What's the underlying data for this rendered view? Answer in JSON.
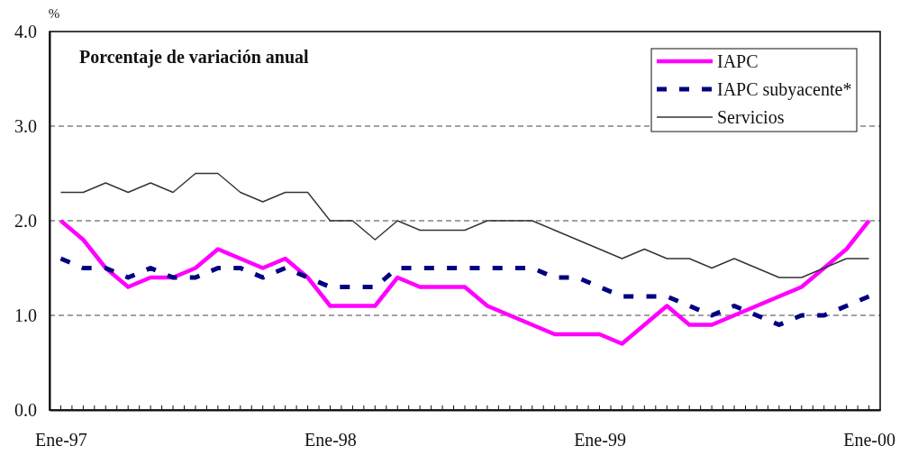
{
  "chart_data": {
    "type": "line",
    "title": "Porcentaje de variación anual",
    "ylabel": "%",
    "categories": [
      "Ene-97",
      null,
      null,
      null,
      null,
      null,
      null,
      null,
      null,
      null,
      null,
      null,
      "Ene-98",
      null,
      null,
      null,
      null,
      null,
      null,
      null,
      null,
      null,
      null,
      null,
      "Ene-99",
      null,
      null,
      null,
      null,
      null,
      null,
      null,
      null,
      null,
      null,
      null,
      "Ene-00"
    ],
    "series": [
      {
        "name": "IAPC",
        "color": "#ff00ff",
        "line_style": "solid",
        "values": [
          2.0,
          1.8,
          1.5,
          1.3,
          1.4,
          1.4,
          1.5,
          1.7,
          1.6,
          1.5,
          1.6,
          1.4,
          1.1,
          1.1,
          1.1,
          1.4,
          1.3,
          1.3,
          1.3,
          1.1,
          1.0,
          0.9,
          0.8,
          0.8,
          0.8,
          0.7,
          0.9,
          1.1,
          0.9,
          0.9,
          1.0,
          1.1,
          1.2,
          1.3,
          1.5,
          1.7,
          2.0
        ]
      },
      {
        "name": "IAPC subyacente*",
        "color": "#000080",
        "line_style": "dashed",
        "values": [
          1.6,
          1.5,
          1.5,
          1.4,
          1.5,
          1.4,
          1.4,
          1.5,
          1.5,
          1.4,
          1.5,
          1.4,
          1.3,
          1.3,
          1.3,
          1.5,
          1.5,
          1.5,
          1.5,
          1.5,
          1.5,
          1.5,
          1.4,
          1.4,
          1.3,
          1.2,
          1.2,
          1.2,
          1.1,
          1.0,
          1.1,
          1.0,
          0.9,
          1.0,
          1.0,
          1.1,
          1.2
        ]
      },
      {
        "name": "Servicios",
        "color": "#333333",
        "line_style": "solid",
        "values": [
          2.3,
          2.3,
          2.4,
          2.3,
          2.4,
          2.3,
          2.5,
          2.5,
          2.3,
          2.2,
          2.3,
          2.3,
          2.0,
          2.0,
          1.8,
          2.0,
          1.9,
          1.9,
          1.9,
          2.0,
          2.0,
          2.0,
          1.9,
          1.8,
          1.7,
          1.6,
          1.7,
          1.6,
          1.6,
          1.5,
          1.6,
          1.5,
          1.4,
          1.4,
          1.5,
          1.6,
          1.6
        ]
      }
    ],
    "ylim": [
      0,
      4
    ],
    "yticks": [
      {
        "value": 0,
        "label": "0.0"
      },
      {
        "value": 1,
        "label": "1.0"
      },
      {
        "value": 2,
        "label": "2.0"
      },
      {
        "value": 3,
        "label": "3.0"
      },
      {
        "value": 4,
        "label": "4.0"
      }
    ],
    "grid": "y",
    "legend": "top right"
  }
}
